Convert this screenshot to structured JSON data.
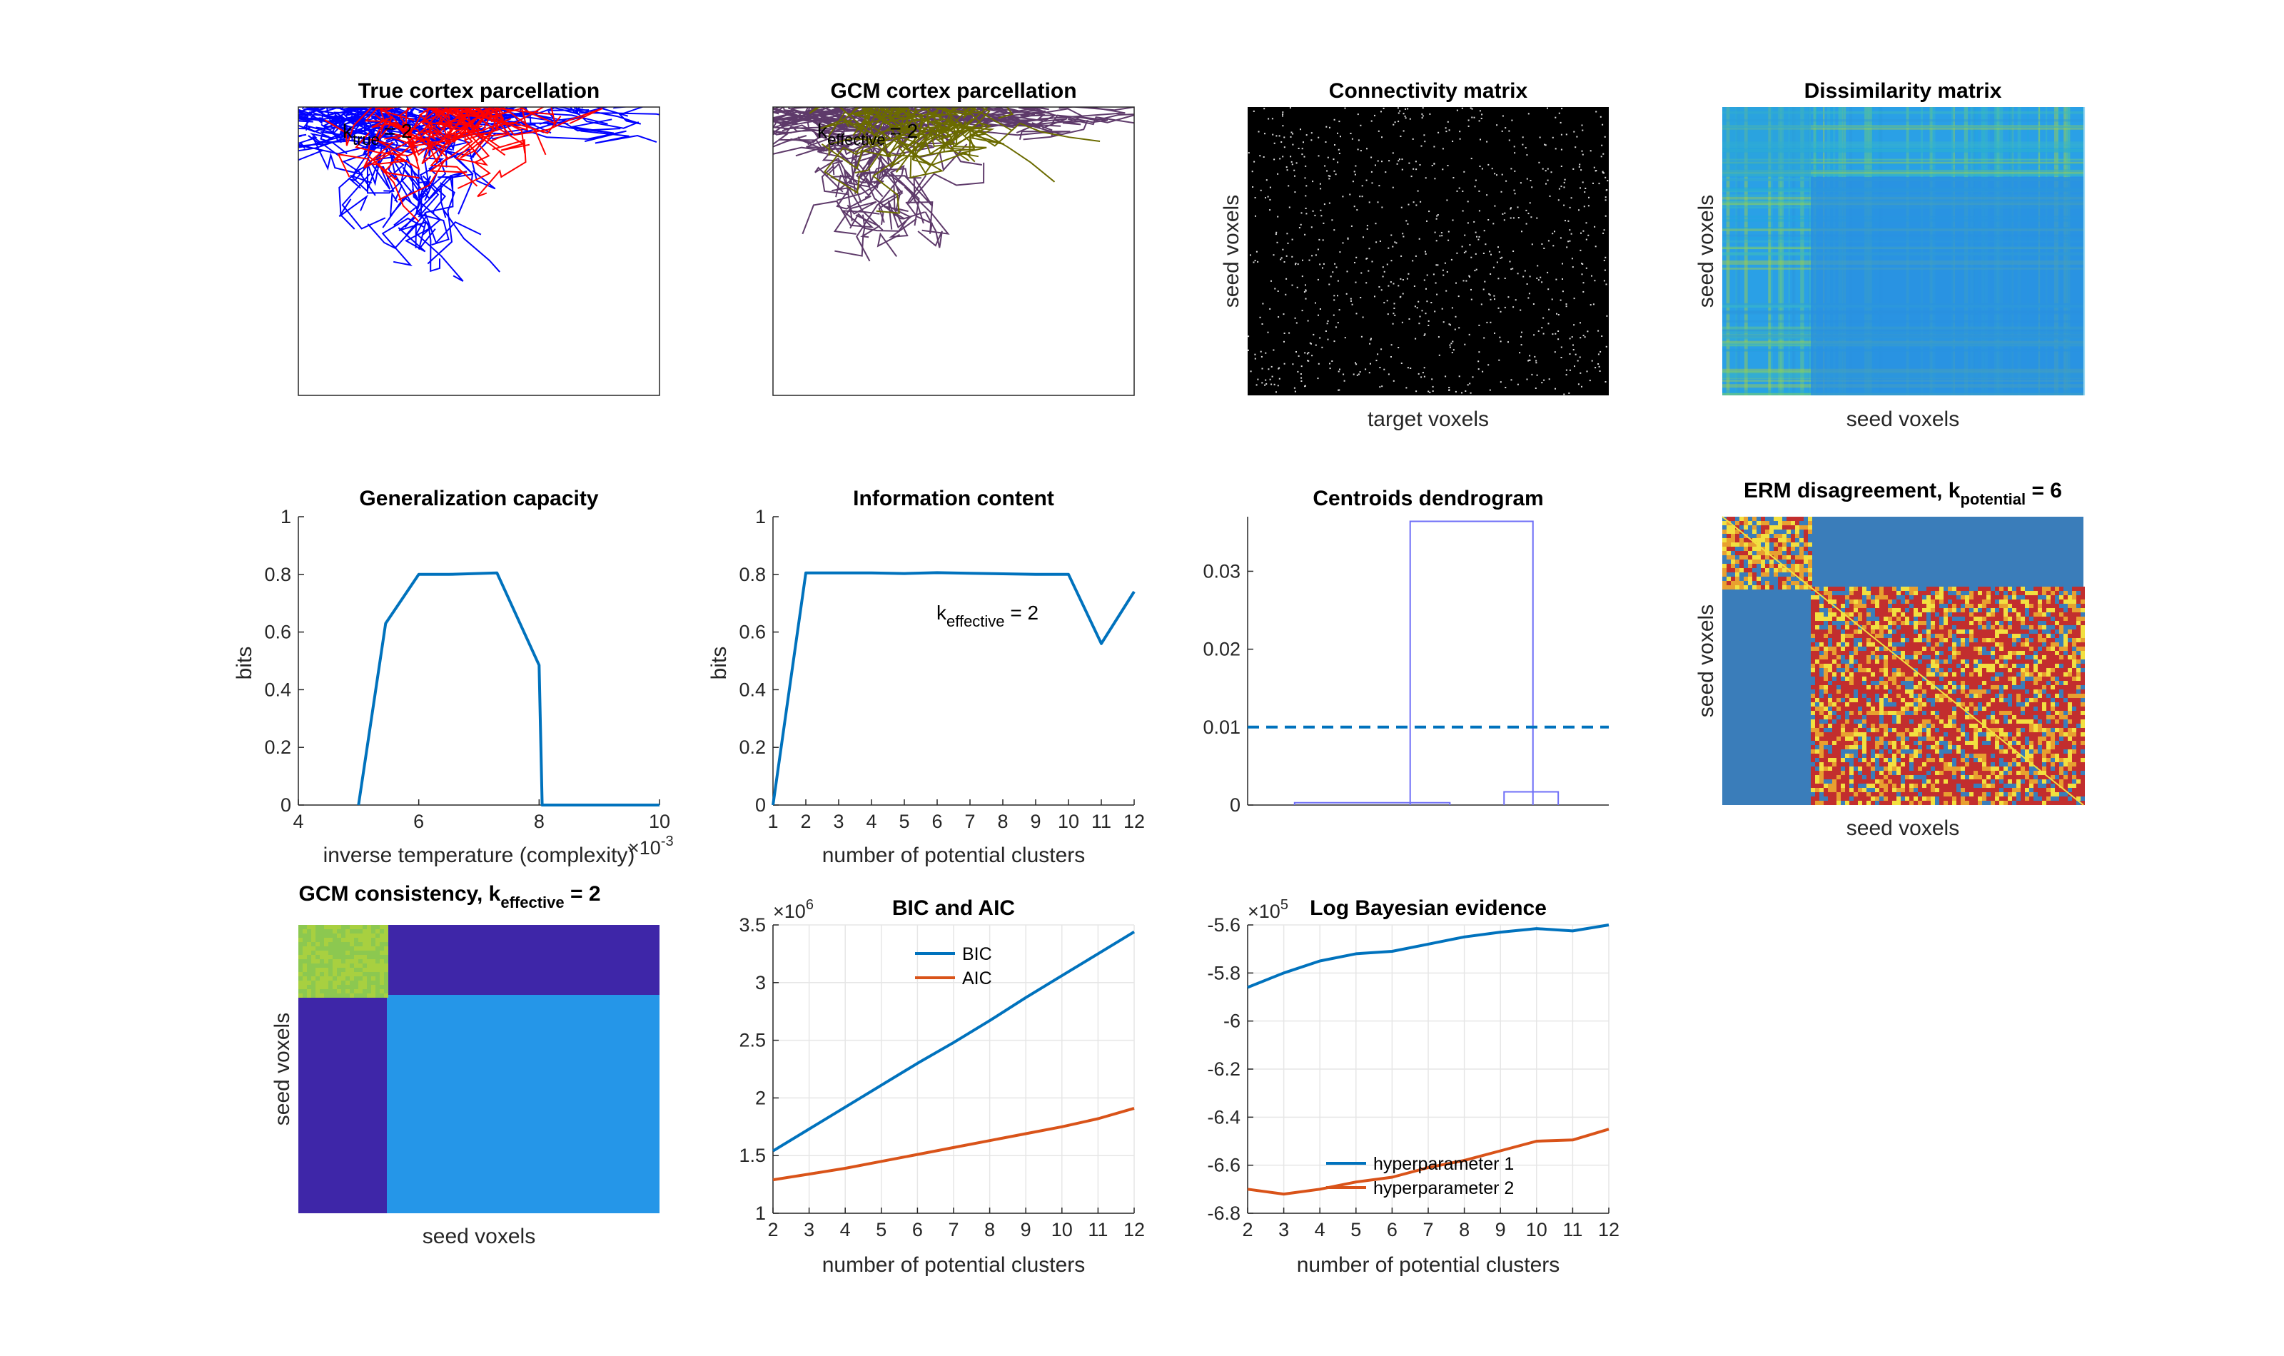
{
  "colors": {
    "blue": "#0072BD",
    "orange": "#D95319",
    "red": "#FF0000",
    "pure_blue": "#0000FF",
    "purple": "#5E3A6A",
    "olive": "#6B6B00",
    "parula_dark": "#3E26A8",
    "parula_mid": "#2596E8",
    "parula_yellow": "#A8D040",
    "erm_blue": "#3A7DBA",
    "erm_red": "#C22E2E",
    "dendro": "#6F6FF7"
  },
  "panels": {
    "true_parcellation": {
      "title": "True cortex parcellation",
      "annotation": "k",
      "annotation_sub": "true",
      "annotation_val": "= 2"
    },
    "gcm_parcellation": {
      "title": "GCM cortex parcellation",
      "annotation": "k",
      "annotation_sub": "effective",
      "annotation_val": "= 2"
    },
    "connectivity": {
      "title": "Connectivity matrix",
      "xlabel": "target voxels",
      "ylabel": "seed voxels"
    },
    "dissimilarity": {
      "title": "Dissimilarity matrix",
      "xlabel": "seed voxels",
      "ylabel": "seed voxels"
    },
    "erm": {
      "title": "ERM disagreement, k",
      "title_sub": "potential",
      "title_val": " = 6",
      "xlabel": "seed voxels",
      "ylabel": "seed voxels"
    },
    "consistency": {
      "title": "GCM consistency, k",
      "title_sub": "effective",
      "title_val": " = 2",
      "xlabel": "seed voxels",
      "ylabel": "seed voxels"
    },
    "dendrogram": {
      "title": "Centroids dendrogram"
    }
  },
  "chart_data": [
    {
      "id": "generalization",
      "type": "line",
      "title": "Generalization capacity",
      "xlabel": "inverse temperature (complexity)",
      "ylabel": "bits",
      "x_exponent": "×10",
      "x_exponent_power": "-3",
      "xlim": [
        4,
        10
      ],
      "ylim": [
        0,
        1
      ],
      "xticks": [
        "4",
        "6",
        "8",
        "10"
      ],
      "yticks": [
        "0",
        "0.2",
        "0.4",
        "0.6",
        "0.8",
        "1"
      ],
      "series": [
        {
          "x": [
            5.0,
            5.45,
            6.0,
            6.5,
            7.3,
            8.0,
            8.05,
            10.0
          ],
          "y": [
            0.0,
            0.63,
            0.8,
            0.8,
            0.805,
            0.485,
            0.0,
            0.0
          ]
        }
      ]
    },
    {
      "id": "information",
      "type": "line",
      "title": "Information content",
      "xlabel": "number of potential clusters",
      "ylabel": "bits",
      "annotation": "k",
      "annotation_sub": "effective",
      "annotation_val": " = 2",
      "xlim": [
        1,
        12
      ],
      "ylim": [
        0,
        1
      ],
      "xticks": [
        "1",
        "2",
        "3",
        "4",
        "5",
        "6",
        "7",
        "8",
        "9",
        "10",
        "11",
        "12"
      ],
      "yticks": [
        "0",
        "0.2",
        "0.4",
        "0.6",
        "0.8",
        "1"
      ],
      "series": [
        {
          "x": [
            1,
            2,
            3,
            4,
            5,
            6,
            7,
            8,
            9,
            10,
            11,
            12
          ],
          "y": [
            0,
            0.805,
            0.805,
            0.805,
            0.803,
            0.806,
            0.804,
            0.802,
            0.8,
            0.8,
            0.56,
            0.74
          ]
        }
      ]
    },
    {
      "id": "dendrogram",
      "type": "line",
      "title": "Centroids dendrogram",
      "ylim": [
        0,
        0.037
      ],
      "yticks": [
        "0",
        "0.01",
        "0.02",
        "0.03"
      ],
      "ytick_values": [
        0,
        0.01,
        0.02,
        0.03
      ],
      "threshold": 0.01,
      "merges": [
        {
          "x1": 0.13,
          "x2": 0.56,
          "h": 0.0003
        },
        {
          "x1": 0.45,
          "x2": 0.79,
          "h": 0.0364
        },
        {
          "x1": 0.71,
          "x2": 0.86,
          "h": 0.0017
        }
      ]
    },
    {
      "id": "bic_aic",
      "type": "line",
      "title": "BIC and AIC",
      "xlabel": "number of potential clusters",
      "y_exponent": "×10",
      "y_exponent_power": "6",
      "xlim": [
        2,
        12
      ],
      "ylim": [
        1,
        3.5
      ],
      "xticks": [
        "2",
        "3",
        "4",
        "5",
        "6",
        "7",
        "8",
        "9",
        "10",
        "11",
        "12"
      ],
      "yticks": [
        "1",
        "1.5",
        "2",
        "2.5",
        "3",
        "3.5"
      ],
      "ytick_values": [
        1,
        1.5,
        2,
        2.5,
        3,
        3.5
      ],
      "legend_position": "top-center",
      "series": [
        {
          "name": "BIC",
          "x": [
            2,
            3,
            4,
            5,
            6,
            7,
            8,
            9,
            10,
            11,
            12
          ],
          "y": [
            1.54,
            1.73,
            1.92,
            2.11,
            2.3,
            2.48,
            2.67,
            2.87,
            3.06,
            3.25,
            3.44
          ]
        },
        {
          "name": "AIC",
          "x": [
            2,
            3,
            4,
            5,
            6,
            7,
            8,
            9,
            10,
            11,
            12
          ],
          "y": [
            1.29,
            1.34,
            1.39,
            1.45,
            1.51,
            1.57,
            1.63,
            1.69,
            1.75,
            1.82,
            1.91
          ]
        }
      ]
    },
    {
      "id": "bayes",
      "type": "line",
      "title": "Log Bayesian evidence",
      "xlabel": "number of potential clusters",
      "y_exponent": "×10",
      "y_exponent_power": "5",
      "xlim": [
        2,
        12
      ],
      "ylim": [
        -6.8,
        -5.6
      ],
      "xticks": [
        "2",
        "3",
        "4",
        "5",
        "6",
        "7",
        "8",
        "9",
        "10",
        "11",
        "12"
      ],
      "yticks": [
        "-6.8",
        "-6.6",
        "-6.4",
        "-6.2",
        "-6",
        "-5.8",
        "-5.6"
      ],
      "ytick_values": [
        -6.8,
        -6.6,
        -6.4,
        -6.2,
        -6.0,
        -5.8,
        -5.6
      ],
      "legend_position": "bottom-center",
      "series": [
        {
          "name": "hyperparameter 1",
          "x": [
            2,
            3,
            4,
            5,
            6,
            7,
            8,
            9,
            10,
            11,
            12
          ],
          "y": [
            -5.86,
            -5.8,
            -5.75,
            -5.72,
            -5.71,
            -5.68,
            -5.65,
            -5.63,
            -5.615,
            -5.625,
            -5.6
          ]
        },
        {
          "name": "hyperparameter 2",
          "x": [
            2,
            3,
            4,
            5,
            6,
            7,
            8,
            9,
            10,
            11,
            12
          ],
          "y": [
            -6.7,
            -6.72,
            -6.7,
            -6.67,
            -6.65,
            -6.61,
            -6.58,
            -6.54,
            -6.5,
            -6.495,
            -6.45
          ]
        }
      ]
    }
  ]
}
